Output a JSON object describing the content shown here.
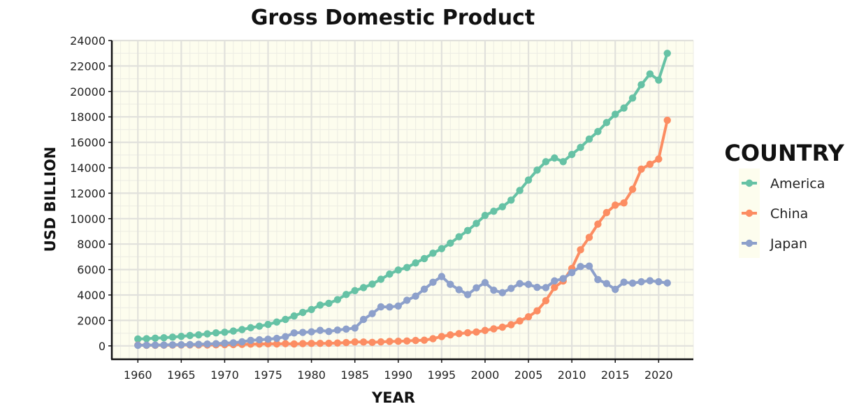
{
  "chart_data": {
    "type": "line",
    "title": "Gross Domestic Product",
    "xlabel": "YEAR",
    "ylabel": "USD BILLION",
    "xlim": [
      1957,
      2024
    ],
    "ylim": [
      -1000,
      24000
    ],
    "xticks": [
      1960,
      1965,
      1970,
      1975,
      1980,
      1985,
      1990,
      1995,
      2000,
      2005,
      2010,
      2015,
      2020
    ],
    "yticks": [
      0,
      2000,
      4000,
      6000,
      8000,
      10000,
      12000,
      14000,
      16000,
      18000,
      20000,
      22000,
      24000
    ],
    "grid": true,
    "legend": {
      "title": "COUNTRY",
      "placement": "right"
    },
    "x": [
      1960,
      1961,
      1962,
      1963,
      1964,
      1965,
      1966,
      1967,
      1968,
      1969,
      1970,
      1971,
      1972,
      1973,
      1974,
      1975,
      1976,
      1977,
      1978,
      1979,
      1980,
      1981,
      1982,
      1983,
      1984,
      1985,
      1986,
      1987,
      1988,
      1989,
      1990,
      1991,
      1992,
      1993,
      1994,
      1995,
      1996,
      1997,
      1998,
      1999,
      2000,
      2001,
      2002,
      2003,
      2004,
      2005,
      2006,
      2007,
      2008,
      2009,
      2010,
      2011,
      2012,
      2013,
      2014,
      2015,
      2016,
      2017,
      2018,
      2019,
      2020,
      2021
    ],
    "series": [
      {
        "name": "America",
        "color": "#66c2a5",
        "values": [
          543,
          563,
          605,
          639,
          686,
          744,
          815,
          862,
          943,
          1020,
          1073,
          1165,
          1280,
          1425,
          1545,
          1684,
          1873,
          2082,
          2351,
          2627,
          2857,
          3207,
          3343,
          3634,
          4037,
          4339,
          4579,
          4855,
          5236,
          5641,
          5963,
          6158,
          6520,
          6858,
          7287,
          7640,
          8073,
          8578,
          9063,
          9631,
          10252,
          10582,
          10936,
          11458,
          12214,
          13037,
          13815,
          14474,
          14769,
          14478,
          15049,
          15600,
          16254,
          16843,
          17551,
          18206,
          18695,
          19480,
          20527,
          21373,
          20894,
          22996
        ]
      },
      {
        "name": "China",
        "color": "#fc8d62",
        "values": [
          60,
          50,
          47,
          51,
          59,
          70,
          76,
          73,
          71,
          80,
          93,
          100,
          114,
          139,
          144,
          163,
          154,
          175,
          150,
          178,
          191,
          196,
          204,
          228,
          260,
          309,
          301,
          273,
          312,
          348,
          361,
          383,
          427,
          445,
          564,
          734,
          863,
          962,
          1029,
          1094,
          1211,
          1339,
          1471,
          1660,
          1955,
          2286,
          2752,
          3550,
          4594,
          5101,
          6087,
          7552,
          8532,
          9570,
          10476,
          11062,
          11233,
          12310,
          13895,
          14280,
          14687,
          17734
        ]
      },
      {
        "name": "Japan",
        "color": "#8da0cb",
        "values": [
          44,
          54,
          60,
          69,
          81,
          91,
          105,
          124,
          146,
          170,
          212,
          240,
          318,
          432,
          480,
          521,
          586,
          721,
          1014,
          1055,
          1105,
          1218,
          1134,
          1243,
          1318,
          1398,
          2078,
          2532,
          3072,
          3054,
          3133,
          3584,
          3909,
          4454,
          4998,
          5449,
          4833,
          4415,
          4033,
          4562,
          4968,
          4374,
          4183,
          4519,
          4893,
          4831,
          4601,
          4579,
          5106,
          5289,
          5759,
          6233,
          6272,
          5212,
          4897,
          4445,
          5004,
          4931,
          5037,
          5124,
          5040,
          4941
        ]
      }
    ]
  }
}
